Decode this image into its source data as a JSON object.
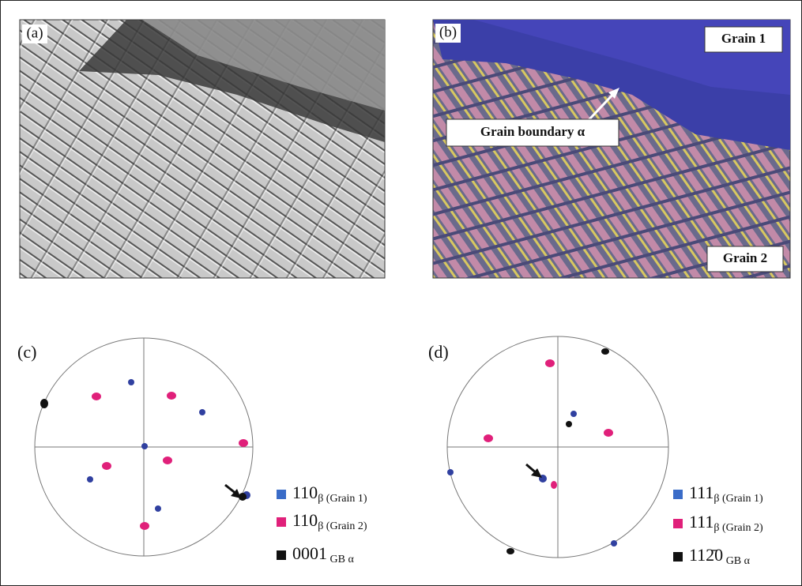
{
  "panels": [
    {
      "label": "(a)"
    },
    {
      "label": "(b)",
      "annotations": [
        "Grain 1",
        "Grain boundary α",
        "Grain 2"
      ]
    },
    {
      "label": "(c)",
      "legend": [
        {
          "main": "110",
          "sub": "β (Grain 1)"
        },
        {
          "main": "110",
          "sub": "β (Grain 2)"
        },
        {
          "main": "0001",
          "sub": " GB α"
        }
      ]
    },
    {
      "label": "(d)",
      "legend": [
        {
          "main": "111",
          "sub": "β (Grain 1)"
        },
        {
          "main": "111",
          "sub": "β (Grain 2)"
        },
        {
          "main": "112̄0",
          "sub": " GB α"
        }
      ]
    }
  ]
}
